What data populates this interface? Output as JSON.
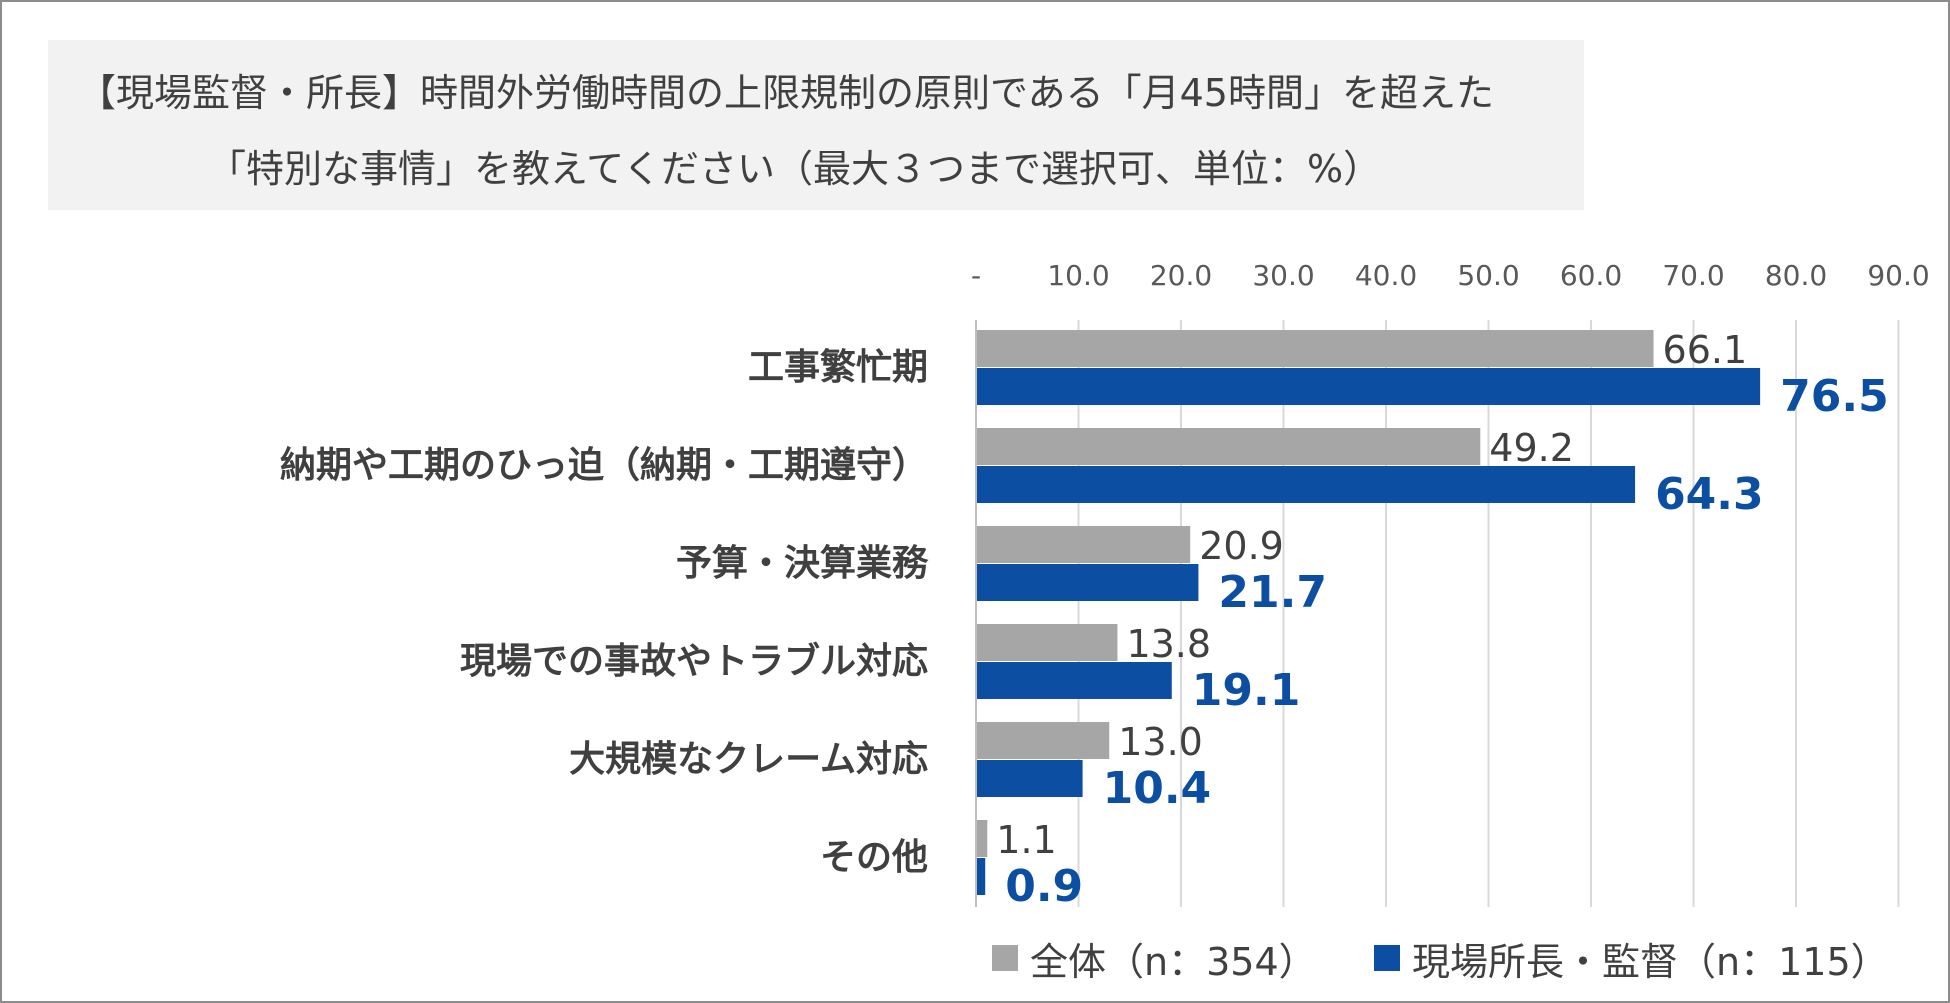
{
  "title": {
    "line1": "【現場監督・所長】時間外労働時間の上限規制の原則である「月45時間」を超えた",
    "line2": "「特別な事情」を教えてください（最大３つまで選択可、単位：%）"
  },
  "chart_data": {
    "type": "bar",
    "orientation": "horizontal",
    "title": "【現場監督・所長】時間外労働時間の上限規制の原則である「月45時間」を超えた「特別な事情」を教えてください（最大３つまで選択可、単位：%）",
    "categories": [
      "工事繁忙期",
      "納期や工期のひっ迫（納期・工期遵守）",
      "予算・決算業務",
      "現場での事故やトラブル対応",
      "大規模なクレーム対応",
      "その他"
    ],
    "series": [
      {
        "name": "全体（n：354）",
        "color": "#a6a6a6",
        "values": [
          66.1,
          49.2,
          20.9,
          13.8,
          13.0,
          1.1
        ]
      },
      {
        "name": "現場所長・監督（n：115）",
        "color": "#0b4ea2",
        "values": [
          76.5,
          64.3,
          21.7,
          19.1,
          10.4,
          0.9
        ]
      }
    ],
    "x_ticks": [
      {
        "value": 0,
        "label": "-"
      },
      {
        "value": 10,
        "label": "10.0"
      },
      {
        "value": 20,
        "label": "20.0"
      },
      {
        "value": 30,
        "label": "30.0"
      },
      {
        "value": 40,
        "label": "40.0"
      },
      {
        "value": 50,
        "label": "50.0"
      },
      {
        "value": 60,
        "label": "60.0"
      },
      {
        "value": 70,
        "label": "70.0"
      },
      {
        "value": 80,
        "label": "80.0"
      },
      {
        "value": 90,
        "label": "90.0"
      }
    ],
    "xlim": [
      0,
      90
    ],
    "grid": true,
    "axis_position": "top",
    "legend_position": "bottom"
  }
}
